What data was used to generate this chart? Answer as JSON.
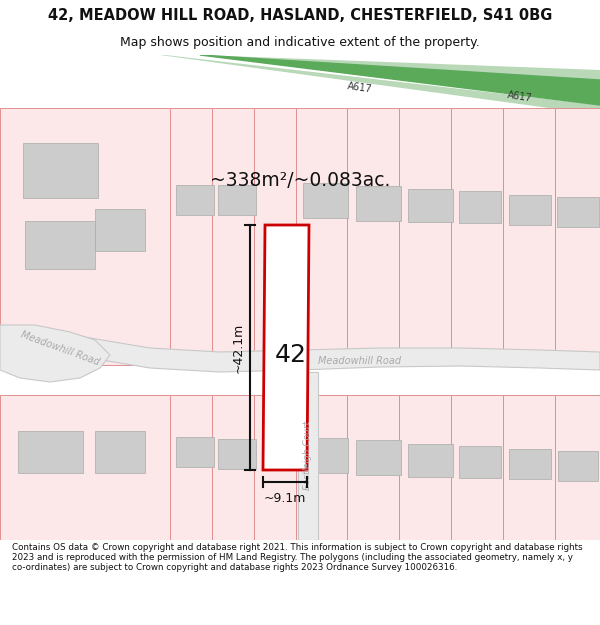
{
  "title": "42, MEADOW HILL ROAD, HASLAND, CHESTERFIELD, S41 0BG",
  "subtitle": "Map shows position and indicative extent of the property.",
  "footer": "Contains OS data © Crown copyright and database right 2021. This information is subject to Crown copyright and database rights 2023 and is reproduced with the permission of HM Land Registry. The polygons (including the associated geometry, namely x, y co-ordinates) are subject to Crown copyright and database rights 2023 Ordnance Survey 100026316.",
  "area_label": "~338m²/~0.083ac.",
  "height_label": "~42.1m",
  "width_label": "~9.1m",
  "plot_number": "42",
  "bg_color": "#ffffff",
  "plot_outline_color": "#cc0000",
  "plot_fill_color": "#ffffff",
  "road_fill_color": "#ebebeb",
  "road_outline_color": "#c8c8c8",
  "building_color": "#cccccc",
  "prop_fill_color": "#fce8e8",
  "prop_line_color": "#e09090",
  "a617_fill": "#5aaa5a",
  "a617_shoulder": "#b8d8b8",
  "dim_color": "#111111",
  "text_color": "#111111",
  "road_text_color": "#aaaaaa",
  "a617_text_color": "#333333"
}
